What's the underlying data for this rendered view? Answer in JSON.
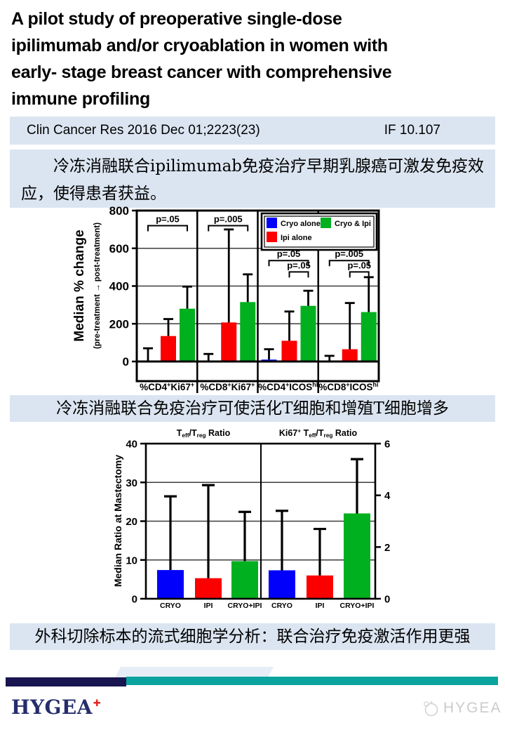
{
  "slide": {
    "title_lines": [
      "A pilot study of preoperative single-dose",
      "ipilimumab and/or cryoablation in women with",
      "early- stage breast cancer with comprehensive",
      "immune profiling"
    ],
    "journal": {
      "citation": "Clin Cancer Res 2016 Dec 01;2223(23)",
      "impact_factor": "IF 10.107"
    },
    "highlights": {
      "h1": "冷冻消融联合ipilimumab免疫治疗早期乳腺癌可激发免疫效应，使得患者获益。",
      "h2": "冷冻消融联合免疫治疗可使活化T细胞和增殖T细胞增多",
      "h3": "外科切除标本的流式细胞学分析：联合治疗免疫激活作用更强"
    },
    "footer": {
      "logo_text": "HYGEA",
      "watermark_text": "HYGEA"
    }
  },
  "colors": {
    "panel_bg": "#dbe5f1",
    "bar_blue": "#0000fb",
    "bar_red": "#fc0000",
    "bar_green": "#00b01e",
    "footer_navy": "#181550",
    "footer_teal": "#0aa39e",
    "logo_navy": "#252d6b",
    "logo_red": "#e8251f",
    "watermark_gray": "#cbcbcb"
  },
  "chart_data": [
    {
      "id": "chart1",
      "type": "bar",
      "ylabel": "Median % change",
      "ylabel_sub": "(pre-treatment → post-treatment)",
      "ylim": [
        0,
        800
      ],
      "yticks": [
        0,
        200,
        400,
        600,
        800
      ],
      "grid": true,
      "legend_position": "top-right",
      "categories": [
        "%CD4[+]Ki67[+]",
        "%CD8[+]Ki67[+]",
        "%CD4[+]ICOS[hi]",
        "%CD8[+]ICOS[hi]"
      ],
      "series": [
        {
          "name": "Cryo alone",
          "color_key": "bar_blue",
          "values": [
            0,
            0,
            10,
            5
          ],
          "err_high": [
            70,
            40,
            65,
            30
          ]
        },
        {
          "name": "Ipi alone",
          "color_key": "bar_red",
          "values": [
            135,
            207,
            110,
            65
          ],
          "err_high": [
            225,
            700,
            265,
            310
          ]
        },
        {
          "name": "Cryo & Ipi",
          "color_key": "bar_green",
          "values": [
            280,
            315,
            295,
            262
          ],
          "err_high": [
            397,
            462,
            375,
            447
          ]
        }
      ],
      "legend_rows": [
        [
          "Cryo alone",
          "Cryo & Ipi"
        ],
        [
          "Ipi alone"
        ]
      ],
      "p_brackets": [
        {
          "group": 0,
          "from_series": 0,
          "to_series": 2,
          "y": 720,
          "label": "p=.05"
        },
        {
          "group": 1,
          "from_series": 0,
          "to_series": 2,
          "y": 720,
          "label": "p=.005"
        },
        {
          "group": 2,
          "from_series": 0,
          "to_series": 2,
          "y": 535,
          "label": "p=.05"
        },
        {
          "group": 2,
          "from_series": 1,
          "to_series": 2,
          "y": 475,
          "label": "p=.05"
        },
        {
          "group": 3,
          "from_series": 0,
          "to_series": 2,
          "y": 535,
          "label": "p=.005"
        },
        {
          "group": 3,
          "from_series": 1,
          "to_series": 2,
          "y": 475,
          "label": "p=.05"
        }
      ]
    },
    {
      "id": "chart2",
      "type": "bar",
      "ylabel": "Median Ratio at Mastectomy",
      "ylim_left": [
        0,
        40
      ],
      "yticks_left": [
        0,
        10,
        20,
        30,
        40
      ],
      "ylim_right": [
        0,
        6
      ],
      "yticks_right": [
        0,
        2,
        4,
        6
      ],
      "grid": true,
      "panels": [
        {
          "title": "T{eff}/T{reg} Ratio",
          "axis": "left",
          "categories": [
            "CRYO",
            "IPI",
            "CRYO+IPI"
          ],
          "values": [
            7.4,
            5.3,
            9.7
          ],
          "err_high": [
            26.4,
            29.3,
            22.4
          ],
          "bar_color_keys": [
            "bar_blue",
            "bar_red",
            "bar_green"
          ]
        },
        {
          "title": "Ki67[+] T{eff}/T{reg} Ratio",
          "axis": "right",
          "categories": [
            "CRYO",
            "IPI",
            "CRYO+IPI"
          ],
          "values": [
            1.1,
            0.9,
            3.3
          ],
          "err_high": [
            3.4,
            2.7,
            5.4
          ],
          "bar_color_keys": [
            "bar_blue",
            "bar_red",
            "bar_green"
          ]
        }
      ]
    }
  ]
}
